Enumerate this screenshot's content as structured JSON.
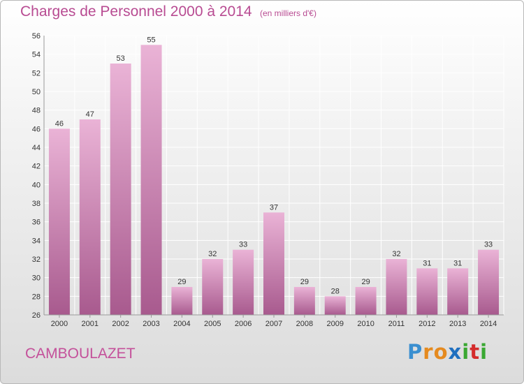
{
  "title": "Charges de Personnel 2000 à 2014",
  "subtitle": "(en milliers d'€)",
  "commune": "CAMBOULAZET",
  "logo": {
    "letters": [
      "P",
      "r",
      "o",
      "x",
      "i",
      "t",
      "i"
    ],
    "colors": [
      "#3a8fd0",
      "#e58a1f",
      "#e58a1f",
      "#1f6fbf",
      "#3aa832",
      "#d42c2c",
      "#3aa832"
    ]
  },
  "colors": {
    "title": "#b84b92",
    "bar_light": "#eab3d6",
    "bar_dark": "#a85a8e",
    "grid": "#ffffff",
    "axis_text": "#333333"
  },
  "chart_data": {
    "type": "bar",
    "categories": [
      "2000",
      "2001",
      "2002",
      "2003",
      "2004",
      "2005",
      "2006",
      "2007",
      "2008",
      "2009",
      "2010",
      "2011",
      "2012",
      "2013",
      "2014"
    ],
    "values": [
      46,
      47,
      53,
      55,
      29,
      32,
      33,
      37,
      29,
      28,
      29,
      32,
      31,
      31,
      33
    ],
    "ylim": [
      26,
      56
    ],
    "yticks": [
      26,
      28,
      30,
      32,
      34,
      36,
      38,
      40,
      42,
      44,
      46,
      48,
      50,
      52,
      54,
      56
    ],
    "grid": true,
    "data_labels": true
  }
}
